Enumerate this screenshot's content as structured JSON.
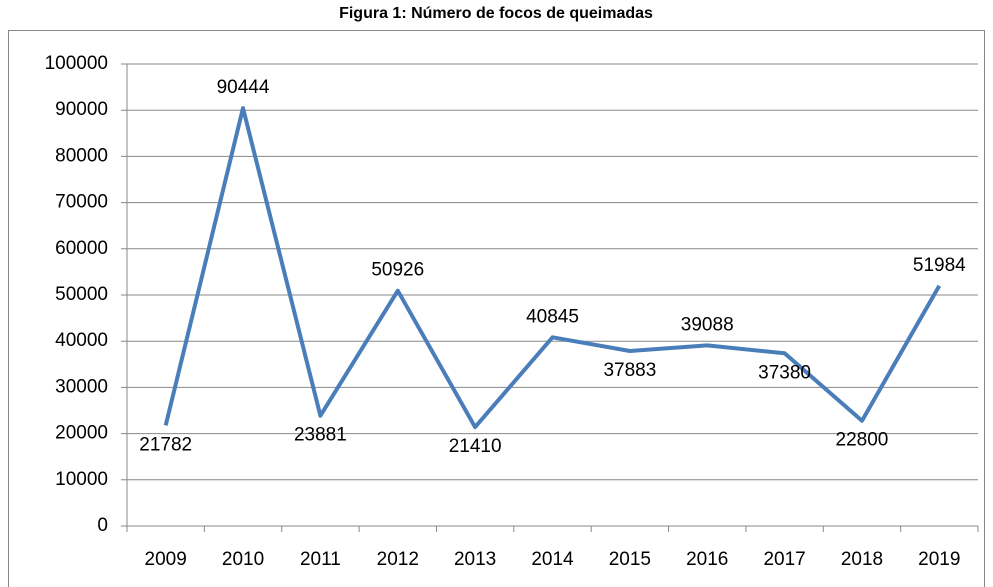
{
  "chart_data": {
    "type": "line",
    "title": "Figura 1: Número de focos de queimadas",
    "categories": [
      "2009",
      "2010",
      "2011",
      "2012",
      "2013",
      "2014",
      "2015",
      "2016",
      "2017",
      "2018",
      "2019"
    ],
    "values": [
      21782,
      90444,
      23881,
      50926,
      21410,
      40845,
      37883,
      39088,
      37380,
      22800,
      51984
    ],
    "color": "#4a7ebb",
    "ylim": [
      0,
      100000
    ],
    "yticks": [
      0,
      10000,
      20000,
      30000,
      40000,
      50000,
      60000,
      70000,
      80000,
      90000,
      100000
    ],
    "grid": true
  }
}
